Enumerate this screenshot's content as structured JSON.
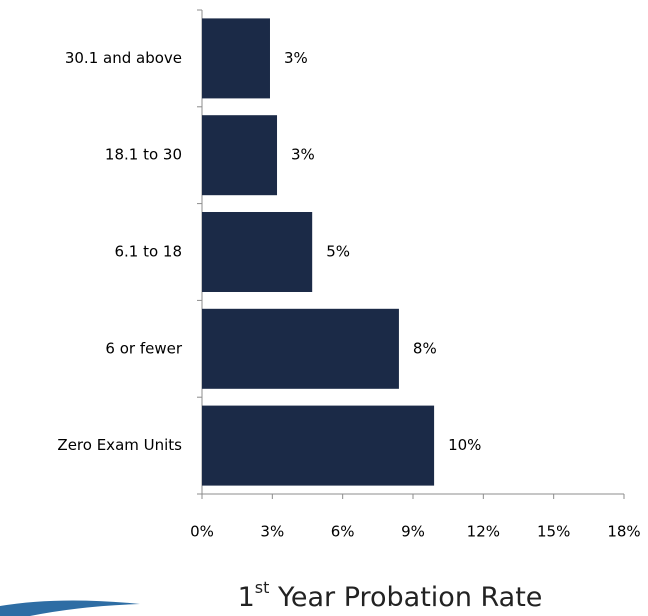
{
  "chart_data": {
    "type": "barh",
    "categories": [
      "30.1 and above",
      "18.1 to 30",
      "6.1 to 18",
      "6 or fewer",
      "Zero Exam Units"
    ],
    "values": [
      2.9,
      3.2,
      4.7,
      8.4,
      9.9
    ],
    "value_labels": [
      "3%",
      "3%",
      "5%",
      "8%",
      "10%"
    ],
    "color": "#1b2a47",
    "xlim": [
      0,
      18
    ],
    "xticks": [
      {
        "value": 0,
        "label": "0%"
      },
      {
        "value": 3,
        "label": "3%"
      },
      {
        "value": 6,
        "label": "6%"
      },
      {
        "value": 9,
        "label": "9%"
      },
      {
        "value": 12,
        "label": "12%"
      },
      {
        "value": 15,
        "label": "15%"
      },
      {
        "value": 18,
        "label": "18%"
      }
    ],
    "x_label": [
      "1",
      "st",
      " Year Probation Rate"
    ]
  }
}
